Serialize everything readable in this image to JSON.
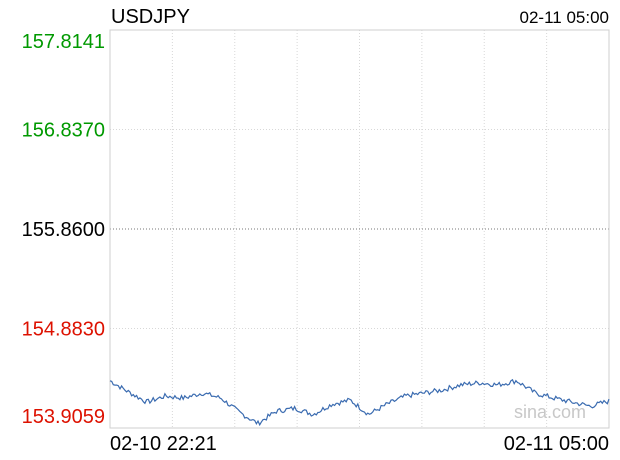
{
  "header": {
    "symbol": "USDJPY",
    "time_range_end": "02-11 05:00"
  },
  "watermark": "sina.com",
  "colors": {
    "line": "#3a6bb0",
    "above_prev": "#009900",
    "below_prev": "#dd1100",
    "neutral": "#000000",
    "grid": "#d8d8d8",
    "frame": "#cfcfcf"
  },
  "chart_data": {
    "type": "line",
    "title": "USDJPY",
    "y_ticks": [
      {
        "label": "157.8141",
        "value": 157.8141,
        "tone": "above_prev"
      },
      {
        "label": "156.8370",
        "value": 156.837,
        "tone": "above_prev"
      },
      {
        "label": "155.8600",
        "value": 155.86,
        "tone": "neutral"
      },
      {
        "label": "154.8830",
        "value": 154.883,
        "tone": "below_prev"
      },
      {
        "label": "153.9059",
        "value": 153.9059,
        "tone": "below_prev"
      }
    ],
    "x_ticks": [
      "02-10 22:21",
      "02-11 05:00"
    ],
    "ylim": [
      153.9059,
      157.8141
    ],
    "reference_value": 155.86,
    "x_range": [
      "02-10 22:21",
      "02-11 05:00"
    ],
    "grid": true,
    "series": [
      {
        "x": [
          "22:21",
          "22:35",
          "22:50",
          "23:05",
          "23:20",
          "23:35",
          "23:50",
          "00:05",
          "00:20",
          "00:35",
          "00:50",
          "01:05",
          "01:20",
          "01:35",
          "01:50",
          "02:05",
          "02:20",
          "02:35",
          "02:50",
          "03:05",
          "03:20",
          "03:35",
          "03:50",
          "04:05",
          "04:20",
          "04:35",
          "04:50",
          "05:00"
        ],
        "values": [
          154.37,
          154.26,
          154.16,
          154.22,
          154.2,
          154.25,
          154.2,
          154.06,
          153.95,
          154.07,
          154.1,
          154.04,
          154.14,
          154.18,
          154.04,
          154.14,
          154.22,
          154.25,
          154.28,
          154.33,
          154.35,
          154.33,
          154.37,
          154.25,
          154.2,
          154.16,
          154.12,
          154.17
        ]
      }
    ]
  }
}
